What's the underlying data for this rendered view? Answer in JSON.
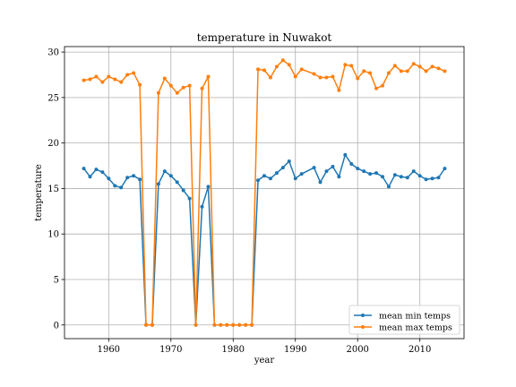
{
  "chart_data": {
    "type": "line",
    "title": "temperature in Nuwakot",
    "xlabel": "year",
    "ylabel": "temperature",
    "xlim": [
      1952.9,
      2017.1
    ],
    "ylim": [
      -1.5,
      30.6
    ],
    "xticks": [
      1960,
      1970,
      1980,
      1990,
      2000,
      2010
    ],
    "yticks": [
      0,
      5,
      10,
      15,
      20,
      25,
      30
    ],
    "grid": true,
    "legend_position": "lower-right",
    "series": [
      {
        "name": "mean min temps",
        "color": "#1f77b4",
        "x": [
          1956,
          1957,
          1958,
          1959,
          1960,
          1961,
          1962,
          1963,
          1964,
          1965,
          1966,
          1967,
          1968,
          1969,
          1970,
          1971,
          1972,
          1973,
          1974,
          1975,
          1976,
          1977,
          1978,
          1979,
          1980,
          1981,
          1982,
          1983,
          1984,
          1985,
          1986,
          1987,
          1988,
          1989,
          1990,
          1991,
          1993,
          1994,
          1995,
          1996,
          1997,
          1998,
          1999,
          2000,
          2001,
          2002,
          2003,
          2004,
          2005,
          2006,
          2007,
          2008,
          2009,
          2010,
          2011,
          2012,
          2013,
          2014
        ],
        "y": [
          17.2,
          16.3,
          17.1,
          16.8,
          16.1,
          15.3,
          15.1,
          16.2,
          16.4,
          16.0,
          0.0,
          0.0,
          15.5,
          16.9,
          16.4,
          15.7,
          14.8,
          13.9,
          0.0,
          13.0,
          15.2,
          0.0,
          0.0,
          0.0,
          0.0,
          0.0,
          0.0,
          0.0,
          15.9,
          16.4,
          16.1,
          16.7,
          17.3,
          18.0,
          16.1,
          16.6,
          17.3,
          15.7,
          16.9,
          17.4,
          16.3,
          18.7,
          17.7,
          17.2,
          16.9,
          16.6,
          16.7,
          16.3,
          15.2,
          16.5,
          16.3,
          16.2,
          16.9,
          16.4,
          16.0,
          16.1,
          16.2,
          17.2
        ]
      },
      {
        "name": "mean max temps",
        "color": "#ff7f0e",
        "x": [
          1956,
          1957,
          1958,
          1959,
          1960,
          1961,
          1962,
          1963,
          1964,
          1965,
          1966,
          1967,
          1968,
          1969,
          1970,
          1971,
          1972,
          1973,
          1974,
          1975,
          1976,
          1977,
          1978,
          1979,
          1980,
          1981,
          1982,
          1983,
          1984,
          1985,
          1986,
          1987,
          1988,
          1989,
          1990,
          1991,
          1993,
          1994,
          1995,
          1996,
          1997,
          1998,
          1999,
          2000,
          2001,
          2002,
          2003,
          2004,
          2005,
          2006,
          2007,
          2008,
          2009,
          2010,
          2011,
          2012,
          2013,
          2014
        ],
        "y": [
          26.9,
          27.0,
          27.3,
          26.7,
          27.3,
          27.0,
          26.7,
          27.5,
          27.7,
          26.4,
          0.0,
          0.0,
          25.5,
          27.1,
          26.3,
          25.5,
          26.1,
          26.3,
          0.0,
          26.0,
          27.3,
          0.0,
          0.0,
          0.0,
          0.0,
          0.0,
          0.0,
          0.0,
          28.1,
          28.0,
          27.2,
          28.4,
          29.1,
          28.6,
          27.3,
          28.1,
          27.6,
          27.2,
          27.2,
          27.3,
          25.8,
          28.6,
          28.5,
          27.1,
          27.9,
          27.7,
          26.0,
          26.3,
          27.7,
          28.5,
          27.9,
          27.9,
          28.7,
          28.4,
          27.9,
          28.4,
          28.2,
          27.9
        ]
      }
    ]
  }
}
